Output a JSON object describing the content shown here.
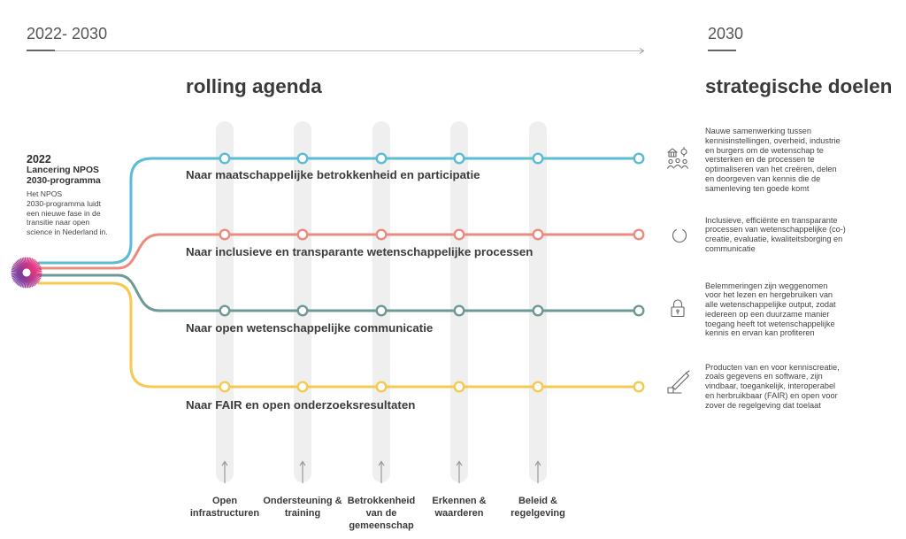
{
  "header": {
    "timeline_label": "2022- 2030",
    "goal_year": "2030",
    "agenda_title": "rolling agenda",
    "goals_title": "strategische doelen"
  },
  "intro": {
    "year": "2022",
    "title_lines": [
      "Lancering NPOS",
      "2030-programma"
    ],
    "body_lines": [
      "Het NPOS",
      "2030-programma luidt",
      "een nieuwe fase in de",
      "transitie naar open",
      "science in Nederland in."
    ]
  },
  "tracks": [
    {
      "label": "Naar maatschappelijke betrokkenheid en participatie",
      "color": "#5BBCD5",
      "goal_icon": "people-group-icon",
      "goal_lines": [
        "Nauwe samenwerking tussen",
        "kennisinstellingen, overheid, industrie",
        "en burgers om de wetenschap te",
        "versterken en de processen te",
        "optimaliseren van het creëren, delen",
        "en doorgeven van kennis die de",
        "samenleving ten goede komt"
      ]
    },
    {
      "label": "Naar inclusieve en transparante wetenschappelijke processen",
      "color": "#EC8B7D",
      "goal_icon": "cycle-icon",
      "goal_lines": [
        "Inclusieve, efficiënte en transparante",
        "processen van wetenschappelijke (co-)",
        "creatie, evaluatie, kwaliteitsborging en",
        "communicatie"
      ]
    },
    {
      "label": "Naar open wetenschappelijke communicatie",
      "color": "#6E9A96",
      "goal_icon": "lock-icon",
      "goal_lines": [
        "Belemmeringen zijn weggenomen",
        "voor het lezen en hergebruiken van",
        "alle wetenschappelijke output, zodat",
        "iedereen op een duurzame manier",
        "toegang heeft tot wetenschappelijke",
        "kennis en ervan kan profiteren"
      ]
    },
    {
      "label": "Naar FAIR en open onderzoeksresultaten",
      "color": "#F6C94F",
      "goal_icon": "pen-tool-icon",
      "goal_lines": [
        "Producten van en voor kenniscreatie,",
        "zoals gegevens en software, zijn",
        "vindbaar, toegankelijk, interoperabel",
        "en herbruikbaar (FAIR) en open voor",
        "zover de regelgeving dat toelaat"
      ]
    }
  ],
  "pillars": [
    {
      "label_lines": [
        "Open",
        "infrastructuren"
      ]
    },
    {
      "label_lines": [
        "Ondersteuning &",
        "training"
      ]
    },
    {
      "label_lines": [
        "Betrokkenheid",
        "van de",
        "gemeenschap"
      ]
    },
    {
      "label_lines": [
        "Erkennen &",
        "waarderen"
      ]
    },
    {
      "label_lines": [
        "Beleid &",
        "regelgeving"
      ]
    }
  ],
  "colors": {
    "text": "#3A3A3A",
    "axis_line": "#BDBDBD",
    "axis_marker": "#333333",
    "pillar_background": "#EFEFEF",
    "pillar_arrow": "#9A9A9A",
    "icon_stroke": "#666666",
    "logo_pink": "#E0357E",
    "logo_purple": "#7A3D9E"
  }
}
